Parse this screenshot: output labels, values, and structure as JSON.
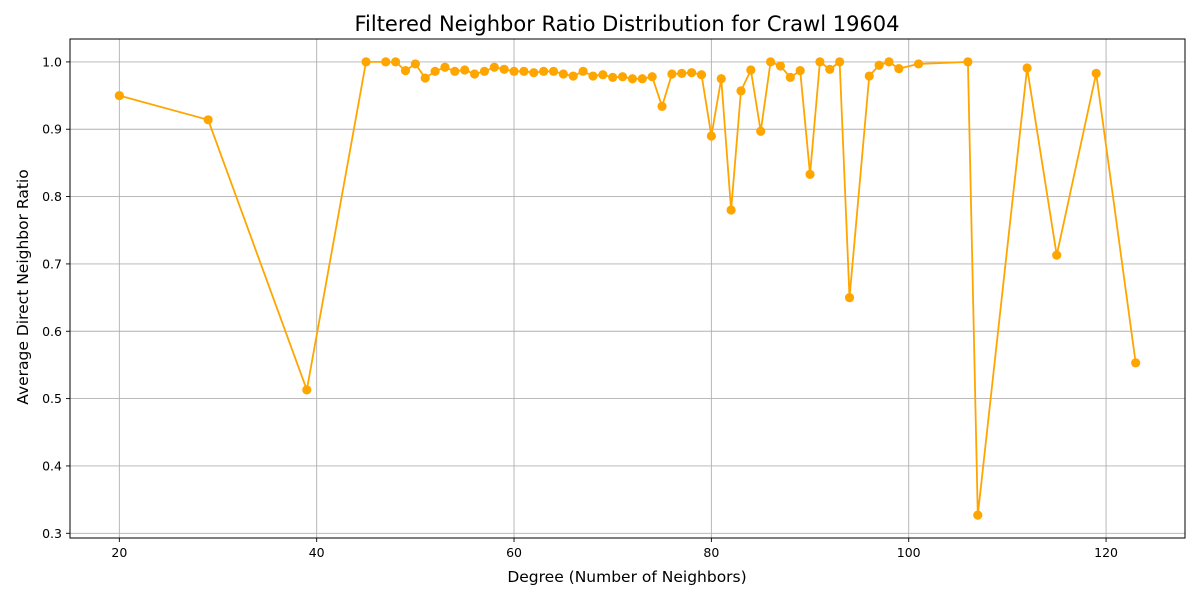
{
  "chart_data": {
    "type": "line",
    "title": "Filtered Neighbor Ratio Distribution for Crawl 19604",
    "xlabel": "Degree (Number of Neighbors)",
    "ylabel": "Average Direct Neighbor Ratio",
    "xlim": [
      15,
      128
    ],
    "ylim": [
      0.293,
      1.034
    ],
    "xticks": [
      20,
      40,
      60,
      80,
      100,
      120
    ],
    "xtick_labels": [
      "20",
      "40",
      "60",
      "80",
      "100",
      "120"
    ],
    "yticks": [
      0.3,
      0.4,
      0.5,
      0.6,
      0.7,
      0.8,
      0.9,
      1.0
    ],
    "ytick_labels": [
      "0.3",
      "0.4",
      "0.5",
      "0.6",
      "0.7",
      "0.8",
      "0.9",
      "1.0"
    ],
    "grid": true,
    "color": "#FFA500",
    "marker": "circle",
    "series": [
      {
        "x": [
          20,
          29,
          39,
          45,
          47,
          48,
          49,
          50,
          51,
          52,
          53,
          54,
          55,
          56,
          57,
          58,
          59,
          60,
          61,
          62,
          63,
          64,
          65,
          66,
          67,
          68,
          69,
          70,
          71,
          72,
          73,
          74,
          75,
          76,
          77,
          78,
          79,
          80,
          81,
          82,
          83,
          84,
          85,
          86,
          87,
          88,
          89,
          90,
          91,
          92,
          93,
          94,
          96,
          97,
          98,
          99,
          101,
          106,
          107,
          112,
          115,
          119,
          123
        ],
        "y": [
          0.95,
          0.914,
          0.513,
          1.0,
          1.0,
          1.0,
          0.987,
          0.997,
          0.976,
          0.986,
          0.992,
          0.986,
          0.988,
          0.982,
          0.986,
          0.992,
          0.989,
          0.986,
          0.986,
          0.984,
          0.986,
          0.986,
          0.982,
          0.979,
          0.986,
          0.979,
          0.981,
          0.977,
          0.978,
          0.975,
          0.975,
          0.978,
          0.934,
          0.982,
          0.983,
          0.984,
          0.981,
          0.89,
          0.975,
          0.78,
          0.957,
          0.988,
          0.897,
          1.0,
          0.994,
          0.977,
          0.987,
          0.833,
          1.0,
          0.989,
          1.0,
          0.65,
          0.979,
          0.995,
          1.0,
          0.99,
          0.997,
          1.0,
          0.327,
          0.991,
          0.713,
          0.983,
          0.553
        ]
      }
    ]
  }
}
